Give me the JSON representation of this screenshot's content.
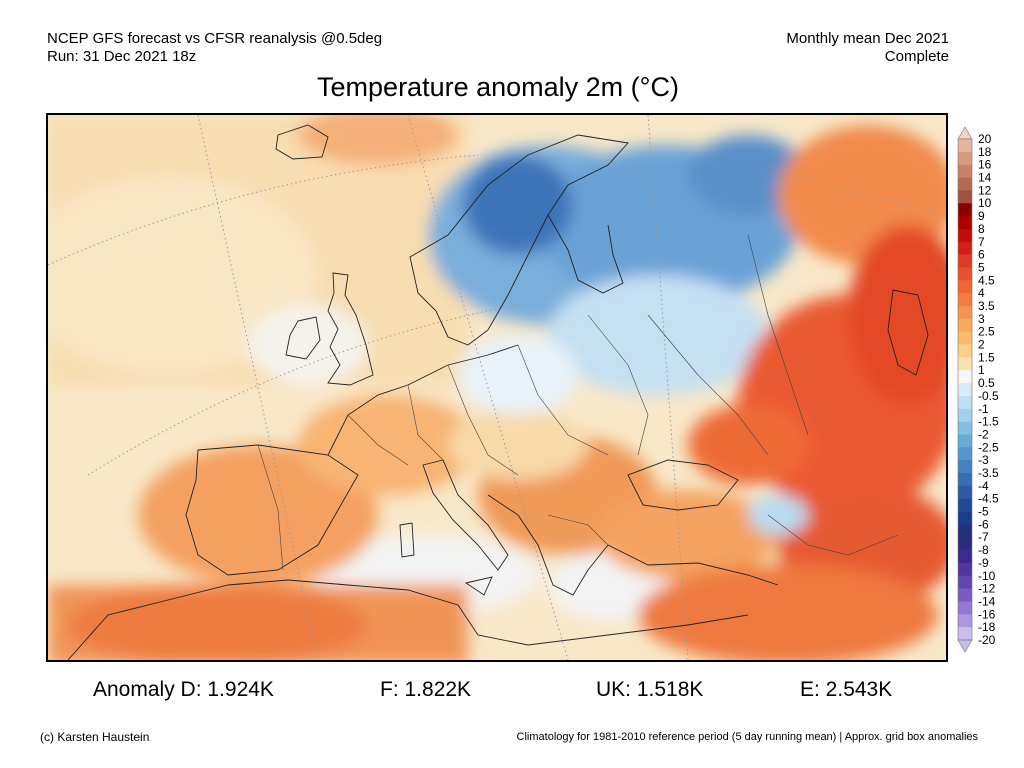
{
  "header": {
    "model_line": "NCEP GFS forecast vs CFSR reanalysis @0.5deg",
    "run_line": "Run: 31 Dec 2021 18z",
    "period_line": "Monthly mean Dec 2021",
    "status_line": "Complete"
  },
  "title": "Temperature anomaly 2m (°C)",
  "legend": {
    "levels": [
      "20",
      "18",
      "16",
      "14",
      "12",
      "10",
      "9",
      "8",
      "7",
      "6",
      "5",
      "4.5",
      "4",
      "3.5",
      "3",
      "2.5",
      "2",
      "1.5",
      "1",
      "0.5",
      "-0.5",
      "-1",
      "-1.5",
      "-2",
      "-2.5",
      "-3",
      "-3.5",
      "-4",
      "-4.5",
      "-5",
      "-6",
      "-7",
      "-8",
      "-9",
      "-10",
      "-12",
      "-14",
      "-16",
      "-18",
      "-20"
    ],
    "colors": [
      "#f2d0c2",
      "#e8b39e",
      "#d99a82",
      "#c9806a",
      "#b46a55",
      "#9e5340",
      "#8a0000",
      "#aa0000",
      "#c40c0c",
      "#d41e1e",
      "#e03a26",
      "#e8502e",
      "#ee6634",
      "#f27e42",
      "#f4944e",
      "#f6aa5a",
      "#f8bd6c",
      "#f9d08a",
      "#fbe3ae",
      "#f6f6f6",
      "#d8ecf6",
      "#bfe0f2",
      "#a3d0ea",
      "#86bee2",
      "#6aaad8",
      "#5496cc",
      "#4282c0",
      "#366eb2",
      "#2c5aa4",
      "#244896",
      "#1e3a8a",
      "#24307e",
      "#2e2a7e",
      "#3c2a8c",
      "#50369e",
      "#6446b0",
      "#7a5cc2",
      "#9278d2",
      "#ad98e0",
      "#cbbcee"
    ]
  },
  "stats": {
    "d": "Anomaly D: 1.924K",
    "f": "F: 1.822K",
    "uk": "UK: 1.518K",
    "e": "E: 2.543K"
  },
  "footer": {
    "credit": "(c) Karsten Haustein",
    "climatology_note": "Climatology for 1981-2010 reference period (5 day running mean) | Approx. grid box anomalies"
  }
}
